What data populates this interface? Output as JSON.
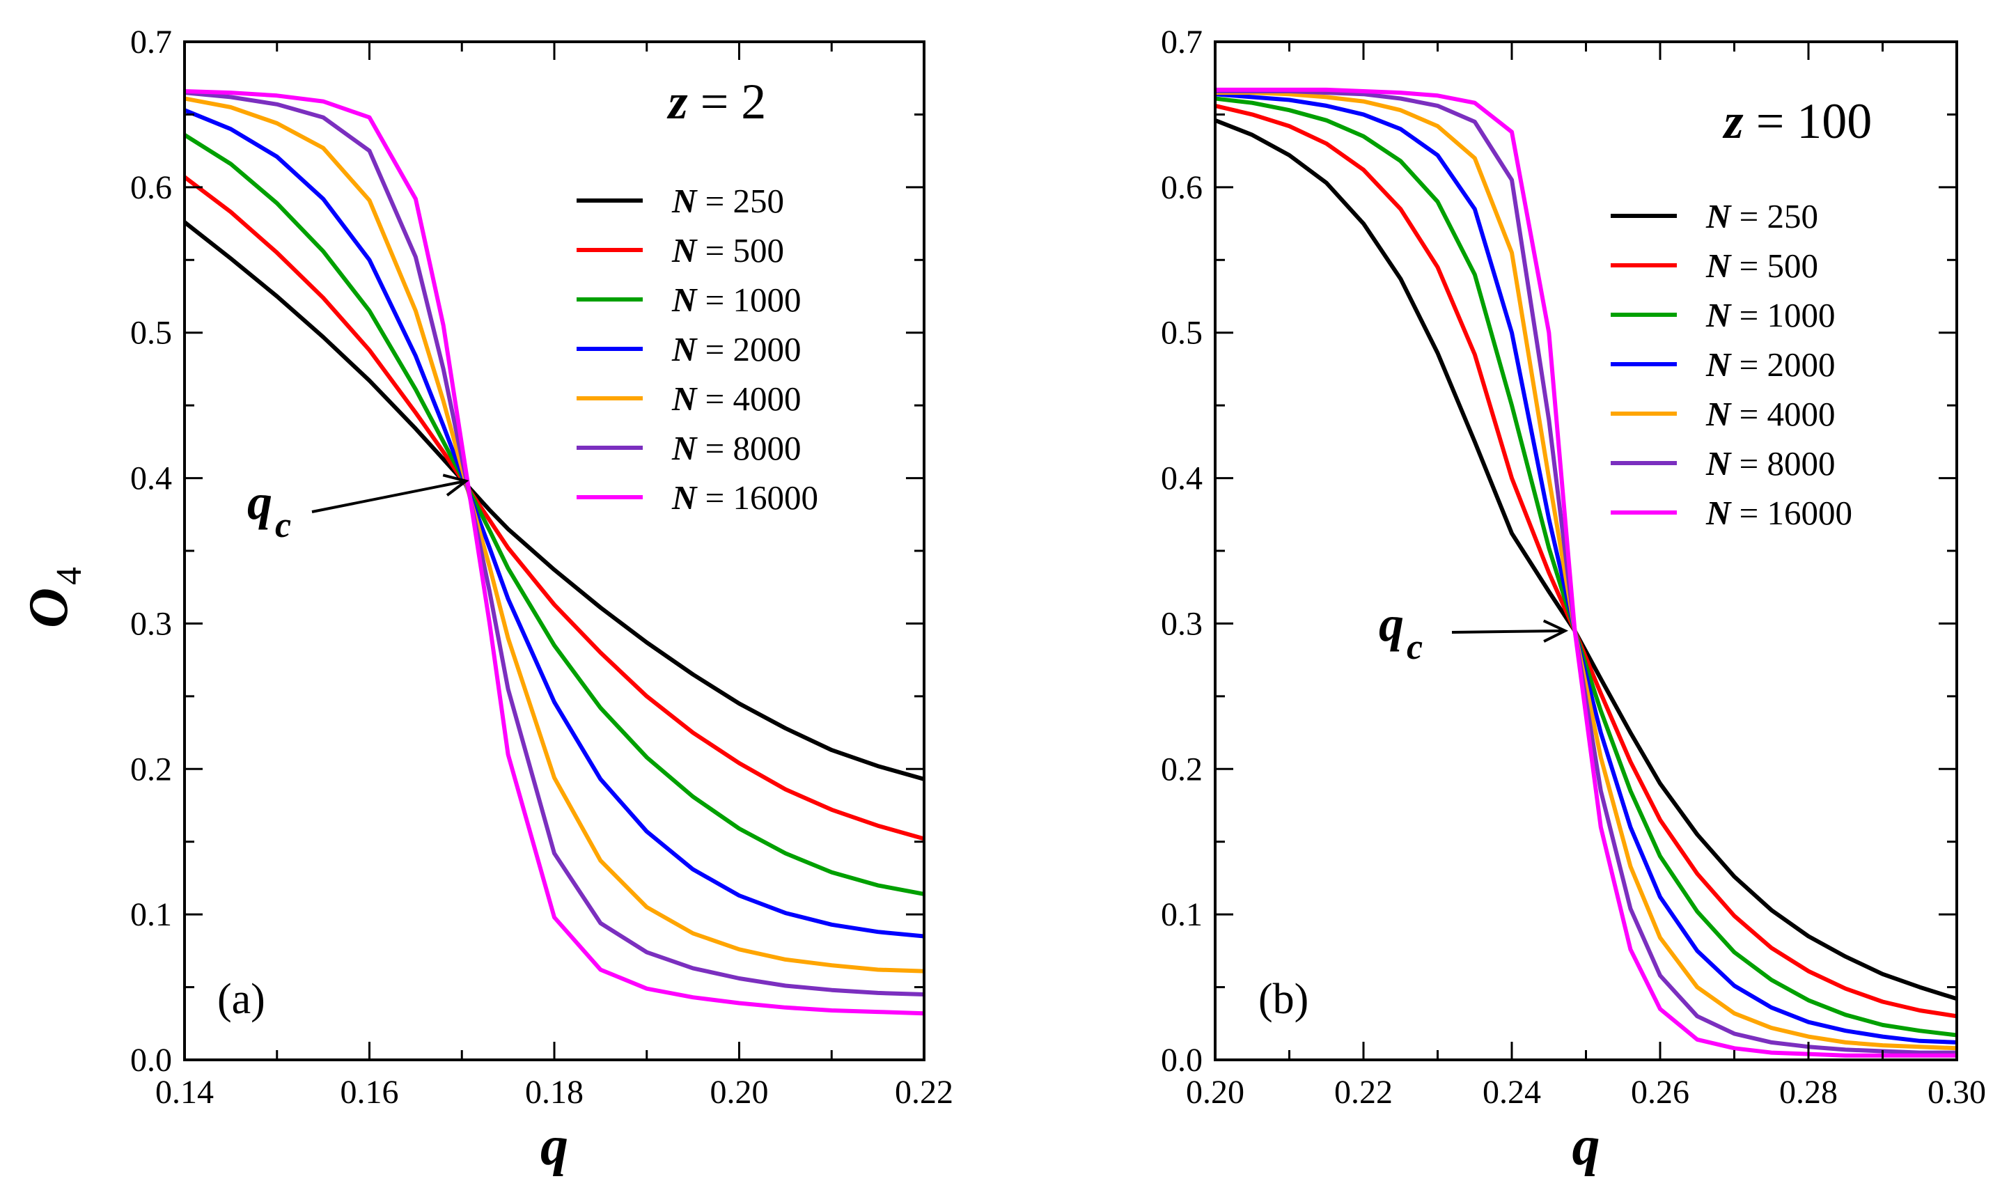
{
  "figure": {
    "y_axis_label": "O",
    "y_axis_subscript": "4",
    "crossing_label": "q",
    "crossing_subscript": "c"
  },
  "chart_data": [
    {
      "type": "line",
      "panel_label": "(a)",
      "title": {
        "var": "z",
        "eq": " = 2"
      },
      "xlabel": "q",
      "ylabel": "O4",
      "xlim": [
        0.14,
        0.22
      ],
      "ylim": [
        0.0,
        0.7
      ],
      "xticks": [
        "0.14",
        "0.16",
        "0.18",
        "0.20",
        "0.22"
      ],
      "yticks": [
        "0.0",
        "0.1",
        "0.2",
        "0.3",
        "0.4",
        "0.5",
        "0.6",
        "0.7"
      ],
      "qc": [
        0.1715,
        0.398
      ],
      "legend": "top-right",
      "x": [
        0.14,
        0.145,
        0.15,
        0.155,
        0.16,
        0.165,
        0.168,
        0.171,
        0.173,
        0.175,
        0.18,
        0.185,
        0.19,
        0.195,
        0.2,
        0.205,
        0.21,
        0.215,
        0.22
      ],
      "series": [
        {
          "name": "N = 250",
          "var": "N",
          "eq": " = 250",
          "color": "#000000",
          "values": [
            0.576,
            0.551,
            0.525,
            0.497,
            0.467,
            0.434,
            0.413,
            0.392,
            0.378,
            0.365,
            0.337,
            0.311,
            0.287,
            0.265,
            0.245,
            0.228,
            0.213,
            0.202,
            0.193
          ]
        },
        {
          "name": "N = 500",
          "var": "N",
          "eq": " = 500",
          "color": "#ff0000",
          "values": [
            0.607,
            0.583,
            0.555,
            0.524,
            0.488,
            0.445,
            0.418,
            0.39,
            0.371,
            0.352,
            0.313,
            0.28,
            0.25,
            0.225,
            0.204,
            0.186,
            0.172,
            0.161,
            0.152
          ]
        },
        {
          "name": "N = 1000",
          "var": "N",
          "eq": " = 1000",
          "color": "#00a000",
          "values": [
            0.636,
            0.616,
            0.589,
            0.556,
            0.515,
            0.461,
            0.425,
            0.389,
            0.364,
            0.338,
            0.285,
            0.242,
            0.208,
            0.181,
            0.159,
            0.142,
            0.129,
            0.12,
            0.114
          ]
        },
        {
          "name": "N = 2000",
          "var": "N",
          "eq": " = 2000",
          "color": "#0000ff",
          "values": [
            0.653,
            0.64,
            0.621,
            0.592,
            0.55,
            0.484,
            0.436,
            0.386,
            0.352,
            0.317,
            0.246,
            0.193,
            0.157,
            0.131,
            0.113,
            0.101,
            0.093,
            0.088,
            0.085
          ]
        },
        {
          "name": "N = 4000",
          "var": "N",
          "eq": " = 4000",
          "color": "#ffa500",
          "values": [
            0.661,
            0.655,
            0.644,
            0.627,
            0.591,
            0.515,
            0.453,
            0.384,
            0.339,
            0.29,
            0.194,
            0.137,
            0.105,
            0.087,
            0.076,
            0.069,
            0.065,
            0.062,
            0.061
          ]
        },
        {
          "name": "N = 8000",
          "var": "N",
          "eq": " = 8000",
          "color": "#7b2fbf",
          "values": [
            0.665,
            0.662,
            0.657,
            0.648,
            0.625,
            0.552,
            0.475,
            0.383,
            0.322,
            0.255,
            0.142,
            0.094,
            0.074,
            0.063,
            0.056,
            0.051,
            0.048,
            0.046,
            0.045
          ]
        },
        {
          "name": "N = 16000",
          "var": "N",
          "eq": " = 16000",
          "color": "#ff00ff",
          "values": [
            0.666,
            0.665,
            0.663,
            0.659,
            0.648,
            0.592,
            0.505,
            0.382,
            0.3,
            0.21,
            0.098,
            0.062,
            0.049,
            0.043,
            0.039,
            0.036,
            0.034,
            0.033,
            0.032
          ]
        }
      ]
    },
    {
      "type": "line",
      "panel_label": "(b)",
      "title": {
        "var": "z",
        "eq": " = 100"
      },
      "xlabel": "q",
      "ylabel": "O4",
      "xlim": [
        0.2,
        0.3
      ],
      "ylim": [
        0.0,
        0.7
      ],
      "xticks": [
        "0.20",
        "0.22",
        "0.24",
        "0.26",
        "0.28",
        "0.30"
      ],
      "yticks": [
        "0.0",
        "0.1",
        "0.2",
        "0.3",
        "0.4",
        "0.5",
        "0.6",
        "0.7"
      ],
      "qc": [
        0.2485,
        0.295
      ],
      "legend": "top-right",
      "x": [
        0.2,
        0.205,
        0.21,
        0.215,
        0.22,
        0.225,
        0.23,
        0.235,
        0.24,
        0.245,
        0.2485,
        0.252,
        0.256,
        0.26,
        0.265,
        0.27,
        0.275,
        0.28,
        0.285,
        0.29,
        0.295,
        0.3
      ],
      "series": [
        {
          "name": "N = 250",
          "var": "N",
          "eq": " = 250",
          "color": "#000000",
          "values": [
            0.646,
            0.636,
            0.622,
            0.603,
            0.575,
            0.537,
            0.486,
            0.425,
            0.362,
            0.322,
            0.295,
            0.262,
            0.225,
            0.19,
            0.155,
            0.126,
            0.103,
            0.085,
            0.071,
            0.059,
            0.05,
            0.042
          ]
        },
        {
          "name": "N = 500",
          "var": "N",
          "eq": " = 500",
          "color": "#ff0000",
          "values": [
            0.656,
            0.65,
            0.642,
            0.63,
            0.612,
            0.585,
            0.545,
            0.485,
            0.4,
            0.335,
            0.295,
            0.252,
            0.205,
            0.165,
            0.128,
            0.099,
            0.077,
            0.061,
            0.049,
            0.04,
            0.034,
            0.03
          ]
        },
        {
          "name": "N = 1000",
          "var": "N",
          "eq": " = 1000",
          "color": "#00a000",
          "values": [
            0.661,
            0.658,
            0.653,
            0.646,
            0.635,
            0.618,
            0.59,
            0.54,
            0.45,
            0.352,
            0.295,
            0.24,
            0.185,
            0.14,
            0.102,
            0.074,
            0.055,
            0.041,
            0.031,
            0.024,
            0.02,
            0.017
          ]
        },
        {
          "name": "N = 2000",
          "var": "N",
          "eq": " = 2000",
          "color": "#0000ff",
          "values": [
            0.664,
            0.662,
            0.66,
            0.656,
            0.65,
            0.64,
            0.622,
            0.585,
            0.5,
            0.372,
            0.295,
            0.225,
            0.16,
            0.112,
            0.075,
            0.051,
            0.036,
            0.026,
            0.02,
            0.016,
            0.013,
            0.012
          ]
        },
        {
          "name": "N = 4000",
          "var": "N",
          "eq": " = 4000",
          "color": "#ffa500",
          "values": [
            0.665,
            0.665,
            0.664,
            0.662,
            0.659,
            0.653,
            0.642,
            0.62,
            0.555,
            0.4,
            0.295,
            0.208,
            0.133,
            0.084,
            0.05,
            0.032,
            0.022,
            0.016,
            0.012,
            0.01,
            0.009,
            0.008
          ]
        },
        {
          "name": "N = 8000",
          "var": "N",
          "eq": " = 8000",
          "color": "#7b2fbf",
          "values": [
            0.666,
            0.666,
            0.666,
            0.665,
            0.664,
            0.661,
            0.656,
            0.645,
            0.605,
            0.44,
            0.295,
            0.185,
            0.104,
            0.058,
            0.03,
            0.018,
            0.012,
            0.009,
            0.007,
            0.006,
            0.005,
            0.005
          ]
        },
        {
          "name": "N = 16000",
          "var": "N",
          "eq": " = 16000",
          "color": "#ff00ff",
          "values": [
            0.667,
            0.667,
            0.667,
            0.667,
            0.666,
            0.665,
            0.663,
            0.658,
            0.638,
            0.5,
            0.295,
            0.16,
            0.076,
            0.035,
            0.014,
            0.008,
            0.005,
            0.004,
            0.003,
            0.003,
            0.003,
            0.003
          ]
        }
      ]
    }
  ]
}
